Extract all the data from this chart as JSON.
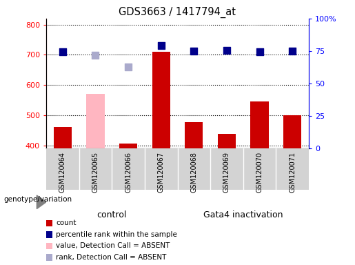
{
  "title": "GDS3663 / 1417794_at",
  "samples": [
    "GSM120064",
    "GSM120065",
    "GSM120066",
    "GSM120067",
    "GSM120068",
    "GSM120069",
    "GSM120070",
    "GSM120071"
  ],
  "count_values": [
    460,
    null,
    407,
    710,
    478,
    437,
    545,
    500
  ],
  "count_absent": [
    null,
    570,
    null,
    null,
    null,
    null,
    null,
    null
  ],
  "percentile_values": [
    710,
    null,
    null,
    730,
    713,
    714,
    710,
    712
  ],
  "percentile_absent": [
    null,
    698,
    660,
    null,
    null,
    null,
    null,
    null
  ],
  "ylim_left": [
    390,
    820
  ],
  "ylim_right": [
    0,
    100
  ],
  "yticks_left": [
    400,
    500,
    600,
    700,
    800
  ],
  "yticks_right": [
    0,
    25,
    50,
    75,
    100
  ],
  "ytick_labels_right": [
    "0",
    "25",
    "50",
    "75",
    "100%"
  ],
  "bar_color": "#cc0000",
  "bar_absent_color": "#ffb6c1",
  "dot_color": "#00008b",
  "dot_absent_color": "#aaaacc",
  "bar_width": 0.55,
  "dot_size": 55,
  "control_color": "#aaffaa",
  "gata4_color": "#66ee66",
  "control_n": 4,
  "legend_items": [
    {
      "color": "#cc0000",
      "label": "count"
    },
    {
      "color": "#00008b",
      "label": "percentile rank within the sample"
    },
    {
      "color": "#ffb6c1",
      "label": "value, Detection Call = ABSENT"
    },
    {
      "color": "#aaaacc",
      "label": "rank, Detection Call = ABSENT"
    }
  ]
}
